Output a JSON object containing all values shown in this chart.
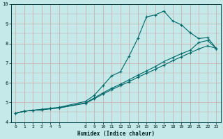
{
  "xlabel": "Humidex (Indice chaleur)",
  "bg_color": "#c5e8e8",
  "grid_color": "#c8a8a8",
  "line_color": "#006868",
  "xlim": [
    -0.5,
    23.5
  ],
  "ylim": [
    4,
    10
  ],
  "xticks": [
    0,
    1,
    2,
    3,
    4,
    5,
    8,
    9,
    10,
    11,
    12,
    13,
    14,
    15,
    16,
    17,
    18,
    19,
    20,
    21,
    22,
    23
  ],
  "yticks": [
    4,
    5,
    6,
    7,
    8,
    9,
    10
  ],
  "line1_x": [
    0,
    1,
    2,
    3,
    4,
    5,
    8,
    9,
    10,
    11,
    12,
    13,
    14,
    15,
    16,
    17,
    18,
    19,
    20,
    21,
    22,
    23
  ],
  "line1_y": [
    4.45,
    4.55,
    4.6,
    4.65,
    4.7,
    4.75,
    5.05,
    5.35,
    5.85,
    6.35,
    6.55,
    7.35,
    8.25,
    9.35,
    9.45,
    9.65,
    9.15,
    8.95,
    8.55,
    8.25,
    8.3,
    7.75
  ],
  "line2_x": [
    0,
    1,
    2,
    3,
    4,
    5,
    8,
    9,
    10,
    11,
    12,
    13,
    14,
    15,
    16,
    17,
    18,
    19,
    20,
    21,
    22,
    23
  ],
  "line2_y": [
    4.45,
    4.55,
    4.6,
    4.62,
    4.68,
    4.72,
    4.98,
    5.22,
    5.48,
    5.72,
    5.92,
    6.15,
    6.38,
    6.6,
    6.82,
    7.08,
    7.28,
    7.48,
    7.65,
    8.05,
    8.15,
    7.75
  ],
  "line3_x": [
    0,
    1,
    2,
    3,
    4,
    5,
    8,
    9,
    10,
    11,
    12,
    13,
    14,
    15,
    16,
    17,
    18,
    19,
    20,
    21,
    22,
    23
  ],
  "line3_y": [
    4.45,
    4.55,
    4.6,
    4.62,
    4.68,
    4.72,
    4.95,
    5.18,
    5.42,
    5.65,
    5.85,
    6.05,
    6.28,
    6.48,
    6.68,
    6.9,
    7.12,
    7.32,
    7.52,
    7.72,
    7.88,
    7.75
  ]
}
